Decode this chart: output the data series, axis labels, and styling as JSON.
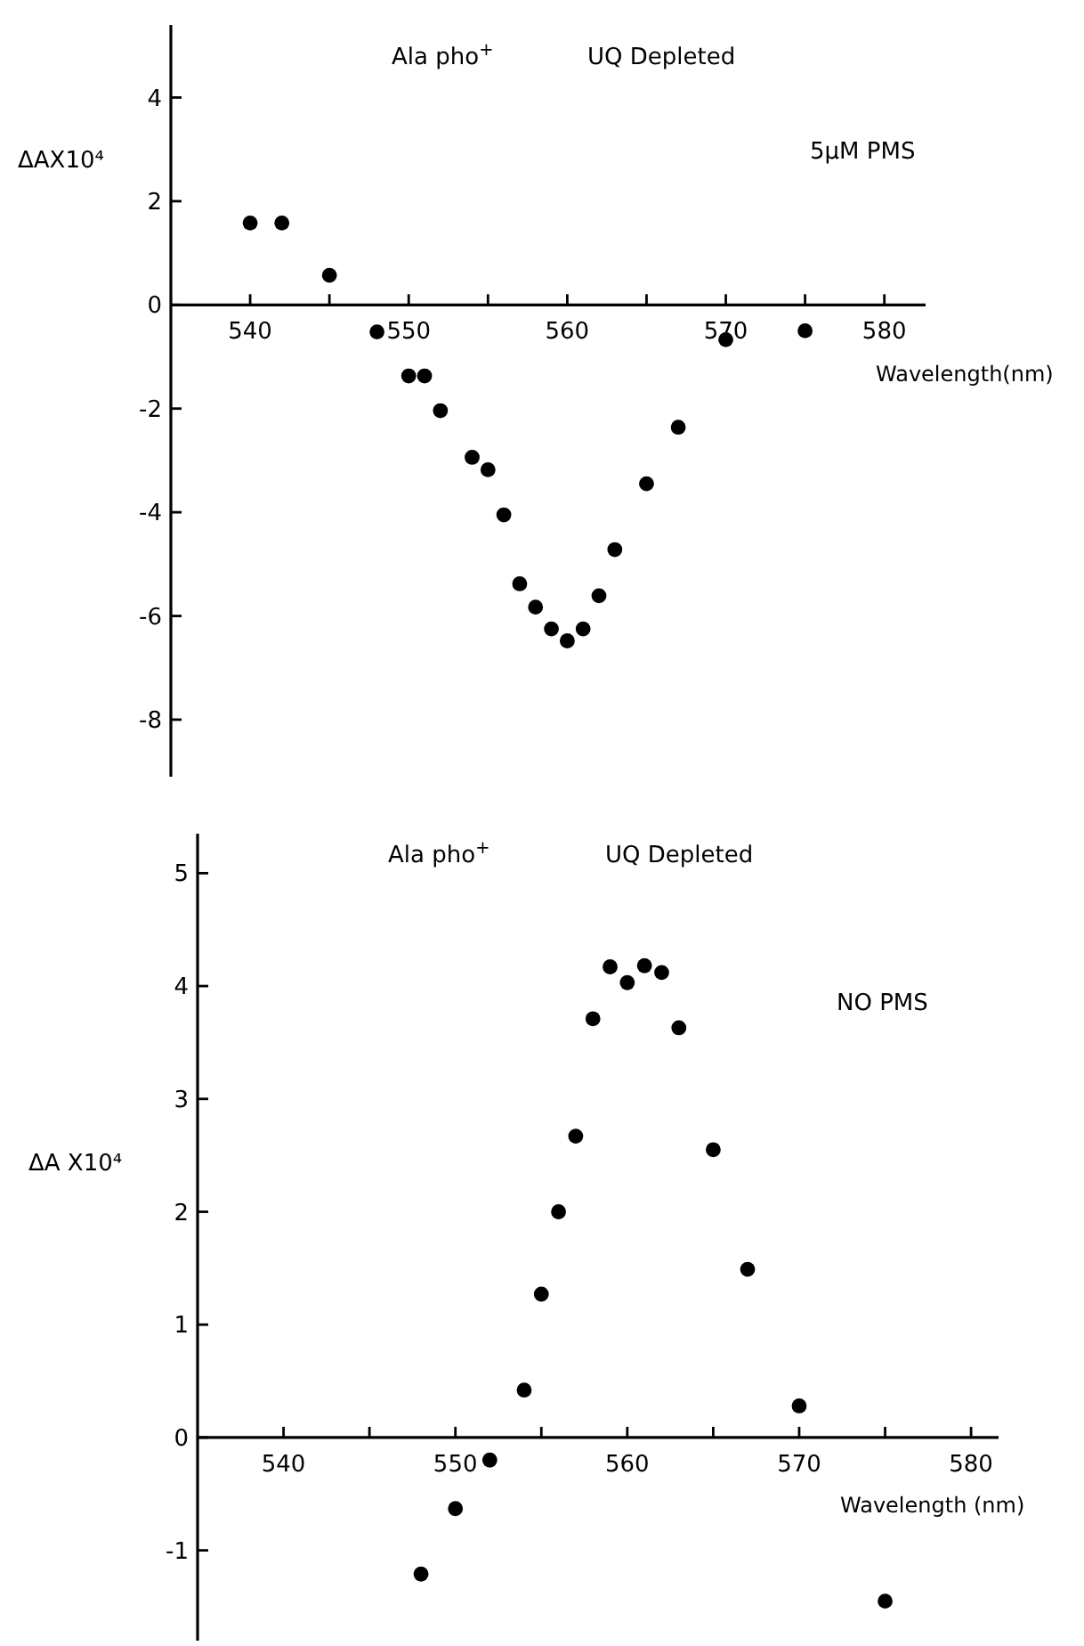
{
  "chart_data": [
    {
      "type": "scatter",
      "xlabel": "Wavelength(nm)",
      "ylabel": "ΔAX10⁴",
      "annotations": [
        "Ala pho$^{+}$",
        "UQ Depleted",
        "5μM PMS"
      ],
      "marker": "circle",
      "xlim": [
        535,
        582.6
      ],
      "ylim": [
        -9.1,
        5.4
      ],
      "xticks": [
        540,
        {
          "value": 545,
          "label": null
        },
        550,
        {
          "value": 555,
          "label": null
        },
        560,
        {
          "value": 565,
          "label": null
        },
        570,
        {
          "value": 575,
          "label": null
        },
        580
      ],
      "yticks": [
        4,
        2,
        0,
        -2,
        -4,
        -6,
        -8
      ],
      "series": [
        {
          "color": "#000000",
          "x": [
            540,
            542,
            545,
            548,
            550,
            551,
            552,
            554,
            555,
            556,
            557,
            558,
            559,
            560,
            561,
            562,
            563,
            565,
            567,
            570,
            575
          ],
          "values": [
            1.58,
            1.58,
            0.57,
            -0.52,
            -1.37,
            -1.37,
            -2.04,
            -2.94,
            -3.18,
            -4.05,
            -5.38,
            -5.83,
            -6.25,
            -6.48,
            -6.25,
            -5.61,
            -4.72,
            -3.45,
            -2.36,
            -0.67,
            -0.5
          ]
        }
      ]
    },
    {
      "type": "scatter",
      "xlabel": "Wavelength (nm)",
      "ylabel": "ΔA X10⁴",
      "annotations": [
        "Ala pho$^{+}$",
        "UQ Depleted",
        "NO PMS"
      ],
      "marker": "circle",
      "xlim": [
        535,
        581.6
      ],
      "ylim": [
        -1.8,
        5.35
      ],
      "xticks": [
        540,
        {
          "value": 545,
          "label": null
        },
        550,
        {
          "value": 555,
          "label": null
        },
        560,
        {
          "value": 565,
          "label": null
        },
        570,
        {
          "value": 575,
          "label": null
        },
        580
      ],
      "yticks": [
        5,
        4,
        3,
        2,
        1,
        0,
        -1
      ],
      "series": [
        {
          "color": "#000000",
          "x": [
            548,
            550,
            552,
            554,
            555,
            556,
            557,
            558,
            559,
            560,
            561,
            562,
            563,
            565,
            567,
            570,
            575
          ],
          "values": [
            -1.21,
            -0.63,
            -0.2,
            0.42,
            1.27,
            2.0,
            2.67,
            3.71,
            4.17,
            4.03,
            4.18,
            4.12,
            3.63,
            2.55,
            1.49,
            0.28,
            -1.45
          ]
        }
      ]
    }
  ]
}
